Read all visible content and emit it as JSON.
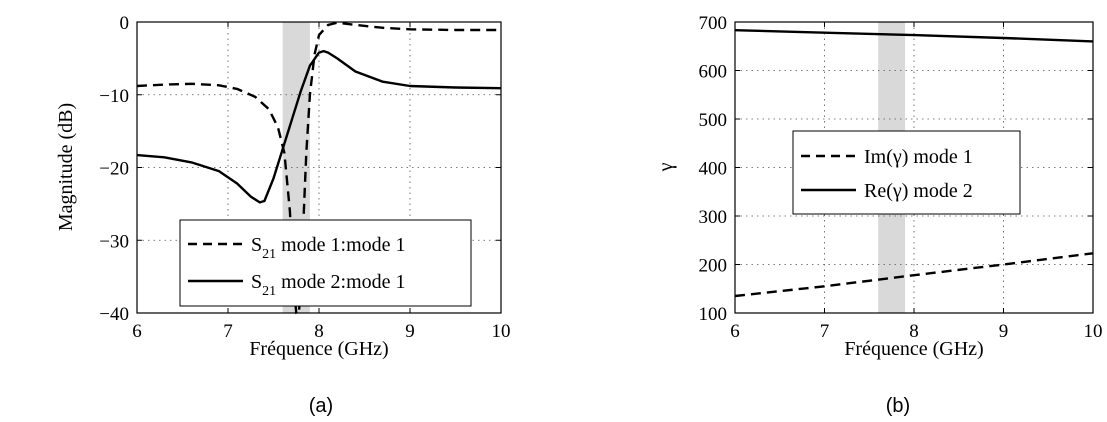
{
  "chart_data": [
    {
      "type": "line",
      "panel_label": "(a)",
      "xlabel": "Fréquence (GHz)",
      "ylabel": "Magnitude (dB)",
      "xlim": [
        6,
        10
      ],
      "ylim": [
        -40,
        0
      ],
      "xticks": [
        "6",
        "7",
        "8",
        "9",
        "10"
      ],
      "yticks": [
        "0",
        "−10",
        "−20",
        "−30",
        "−40"
      ],
      "grid": true,
      "shaded_band": [
        7.6,
        7.9
      ],
      "legend_placement": "lower-right",
      "series": [
        {
          "name": "S21 mode 1:mode 1",
          "name_main": "S",
          "name_sub": "21",
          "name_rest": " mode 1:mode 1",
          "style": "dashed",
          "x": [
            6.0,
            6.3,
            6.6,
            6.9,
            7.1,
            7.3,
            7.45,
            7.55,
            7.62,
            7.68,
            7.72,
            7.75,
            7.78,
            7.82,
            7.86,
            7.9,
            7.95,
            8.0,
            8.1,
            8.2,
            8.4,
            8.7,
            9.0,
            9.5,
            10.0
          ],
          "y": [
            -8.8,
            -8.6,
            -8.5,
            -8.7,
            -9.2,
            -10.3,
            -12.0,
            -14.5,
            -18.0,
            -26.0,
            -36.0,
            -40.0,
            -40.0,
            -30.0,
            -18.0,
            -10.0,
            -4.5,
            -1.8,
            -0.4,
            -0.1,
            -0.4,
            -0.8,
            -1.0,
            -1.1,
            -1.1
          ]
        },
        {
          "name": "S21 mode 2:mode 1",
          "name_main": "S",
          "name_sub": "21",
          "name_rest": " mode 2:mode 1",
          "style": "solid",
          "x": [
            6.0,
            6.3,
            6.6,
            6.9,
            7.1,
            7.25,
            7.35,
            7.4,
            7.5,
            7.6,
            7.7,
            7.8,
            7.9,
            8.0,
            8.05,
            8.1,
            8.2,
            8.4,
            8.7,
            9.0,
            9.5,
            10.0
          ],
          "y": [
            -18.3,
            -18.6,
            -19.3,
            -20.5,
            -22.2,
            -24.0,
            -24.8,
            -24.6,
            -21.5,
            -17.5,
            -13.5,
            -9.5,
            -6.0,
            -4.2,
            -4.0,
            -4.2,
            -5.0,
            -6.8,
            -8.2,
            -8.8,
            -9.0,
            -9.1
          ]
        }
      ]
    },
    {
      "type": "line",
      "panel_label": "(b)",
      "xlabel": "Fréquence (GHz)",
      "ylabel": "γ",
      "xlim": [
        6,
        10
      ],
      "ylim": [
        100,
        700
      ],
      "xticks": [
        "6",
        "7",
        "8",
        "9",
        "10"
      ],
      "yticks": [
        "700",
        "600",
        "500",
        "400",
        "300",
        "200",
        "100"
      ],
      "grid": true,
      "shaded_band": [
        7.6,
        7.9
      ],
      "legend_placement": "center",
      "series": [
        {
          "name": "Im(γ) mode 1",
          "style": "dashed",
          "x": [
            6.0,
            7.0,
            8.0,
            9.0,
            10.0
          ],
          "y": [
            135,
            155,
            178,
            200,
            223
          ]
        },
        {
          "name": "Re(γ) mode 2",
          "style": "solid",
          "x": [
            6.0,
            7.0,
            8.0,
            9.0,
            10.0
          ],
          "y": [
            683,
            678,
            673,
            667,
            660
          ]
        }
      ]
    }
  ]
}
